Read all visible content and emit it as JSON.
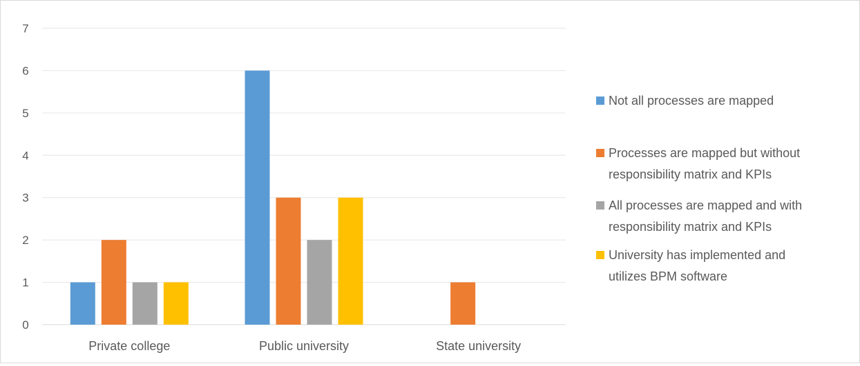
{
  "chart_data": {
    "type": "bar",
    "categories": [
      "Private college",
      "Public university",
      "State university"
    ],
    "series": [
      {
        "name": "Not all processes are mapped",
        "color": "#5b9bd5",
        "values": [
          1,
          6,
          0
        ]
      },
      {
        "name": "Processes are mapped but without responsibility matrix and KPIs",
        "color": "#ed7d31",
        "values": [
          2,
          3,
          1
        ]
      },
      {
        "name": "All processes are mapped and with responsibility matrix and KPIs",
        "color": "#a5a5a5",
        "values": [
          1,
          2,
          0
        ]
      },
      {
        "name": "University has implemented and utilizes BPM software",
        "color": "#ffc000",
        "values": [
          1,
          3,
          0
        ]
      }
    ],
    "yticks": [
      "0",
      "1",
      "2",
      "3",
      "4",
      "5",
      "6",
      "7"
    ],
    "ylim": [
      0,
      7
    ],
    "grid": true,
    "legend_position": "right",
    "title": "",
    "xlabel": "",
    "ylabel": ""
  },
  "legend": {
    "items": [
      {
        "lines": [
          "Not all processes are mapped"
        ]
      },
      {
        "lines": [
          "Processes are mapped but without",
          "responsibility matrix and KPIs"
        ]
      },
      {
        "lines": [
          "All processes are mapped and with",
          "responsibility matrix and KPIs"
        ]
      },
      {
        "lines": [
          "University has implemented and",
          "utilizes BPM software"
        ]
      }
    ]
  }
}
